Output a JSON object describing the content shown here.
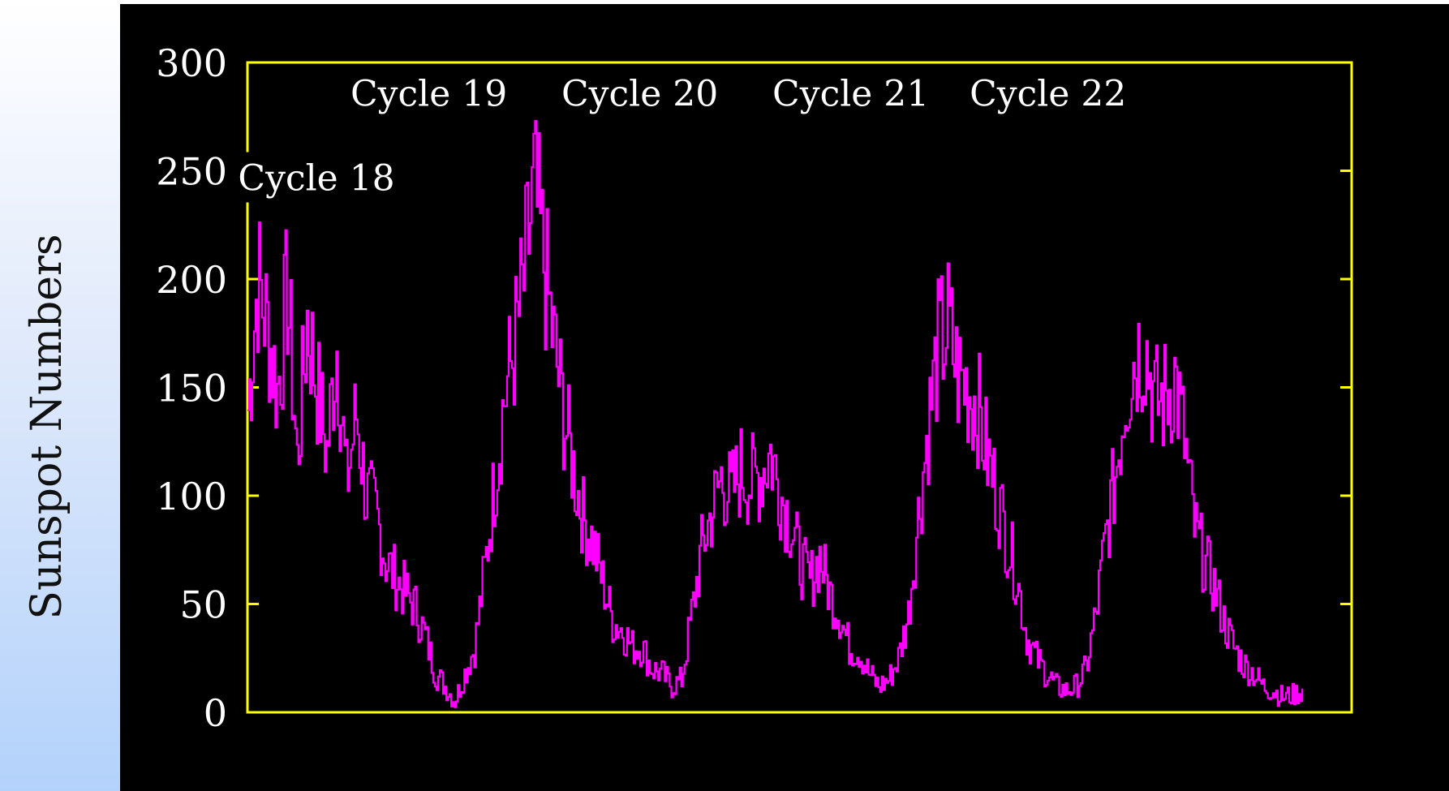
{
  "chart_data": {
    "type": "line",
    "ylabel": "Sunspot Numbers",
    "ylim": [
      0,
      300
    ],
    "yticks": [
      0,
      50,
      100,
      150,
      200,
      250,
      300
    ],
    "x_range": [
      1944,
      2000
    ],
    "colors": {
      "series": "#ff00ff",
      "frame": "#ffff00",
      "text": "#ffffff",
      "plot_background": "#000000"
    },
    "annotations": [
      {
        "text": "Cycle 18",
        "x": 1947.5,
        "y": 247
      },
      {
        "text": "Cycle 19",
        "x": 1953.2,
        "y": 286
      },
      {
        "text": "Cycle 20",
        "x": 1963.9,
        "y": 286
      },
      {
        "text": "Cycle 21",
        "x": 1974.6,
        "y": 286
      },
      {
        "text": "Cycle 22",
        "x": 1984.6,
        "y": 286
      }
    ],
    "series": [
      {
        "x": [
          1944.0,
          1944.5,
          1945.0,
          1945.5,
          1946.0,
          1946.5,
          1947.0,
          1947.5,
          1948.0,
          1948.5,
          1949.0,
          1949.5,
          1950.0,
          1950.5,
          1951.0,
          1951.5,
          1952.0,
          1952.5,
          1953.0,
          1953.5,
          1954.0,
          1954.5,
          1955.0,
          1955.5,
          1956.0,
          1956.5,
          1957.0,
          1957.5,
          1958.0,
          1958.5,
          1959.0,
          1959.5,
          1960.0,
          1960.5,
          1961.0,
          1961.5,
          1962.0,
          1962.5,
          1963.0,
          1963.5,
          1964.0,
          1964.5,
          1965.0,
          1965.5,
          1966.0,
          1966.5,
          1967.0,
          1967.5,
          1968.0,
          1968.5,
          1969.0,
          1969.5,
          1970.0,
          1970.5,
          1971.0,
          1971.5,
          1972.0,
          1972.5,
          1973.0,
          1973.5,
          1974.0,
          1974.5,
          1975.0,
          1975.5,
          1976.0,
          1976.5,
          1977.0,
          1977.5,
          1978.0,
          1978.5,
          1979.0,
          1979.5,
          1980.0,
          1980.5,
          1981.0,
          1981.5,
          1982.0,
          1982.5,
          1983.0,
          1983.5,
          1984.0,
          1984.5,
          1985.0,
          1985.5,
          1986.0,
          1986.5,
          1987.0,
          1987.5,
          1988.0,
          1988.5,
          1989.0,
          1989.5,
          1990.0,
          1990.5,
          1991.0,
          1991.5,
          1992.0,
          1992.5,
          1993.0,
          1993.5,
          1994.0,
          1994.5,
          1995.0,
          1995.5,
          1996.0,
          1996.5,
          1997.0,
          1997.5
        ],
        "values": [
          140,
          200,
          178,
          148,
          195,
          115,
          182,
          150,
          120,
          170,
          105,
          138,
          100,
          92,
          70,
          62,
          55,
          48,
          35,
          18,
          12,
          5,
          18,
          30,
          65,
          105,
          145,
          168,
          198,
          240,
          208,
          170,
          138,
          112,
          90,
          78,
          60,
          42,
          38,
          30,
          30,
          20,
          18,
          12,
          15,
          45,
          75,
          92,
          108,
          100,
          112,
          106,
          110,
          120,
          102,
          88,
          70,
          60,
          72,
          55,
          45,
          30,
          28,
          18,
          12,
          15,
          25,
          45,
          90,
          132,
          168,
          178,
          155,
          150,
          142,
          118,
          100,
          80,
          62,
          35,
          25,
          18,
          12,
          10,
          12,
          20,
          45,
          80,
          110,
          148,
          165,
          170,
          142,
          145,
          155,
          125,
          85,
          70,
          58,
          42,
          30,
          22,
          18,
          12,
          10,
          7,
          8,
          10
        ]
      }
    ]
  }
}
